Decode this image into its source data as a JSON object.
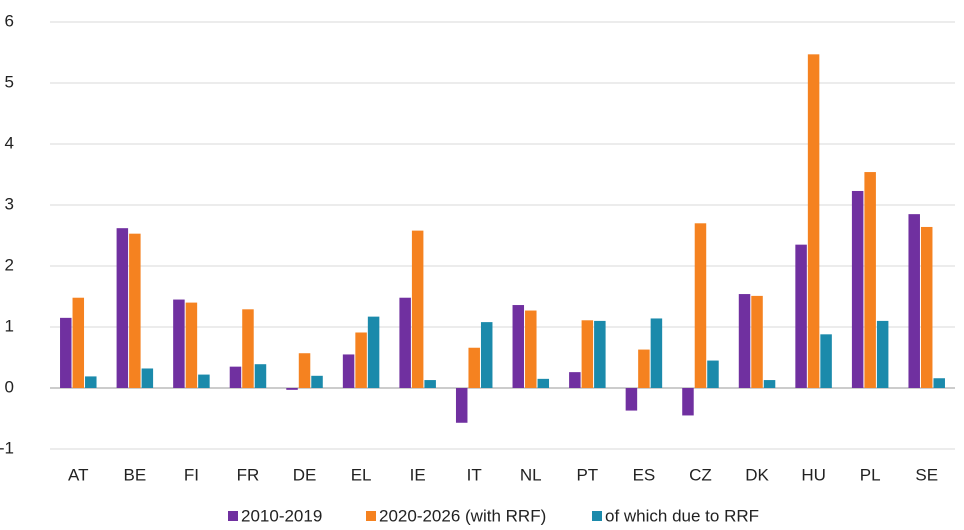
{
  "chart_data": {
    "type": "bar",
    "categories": [
      "AT",
      "BE",
      "FI",
      "FR",
      "DE",
      "EL",
      "IE",
      "IT",
      "NL",
      "PT",
      "ES",
      "CZ",
      "DK",
      "HU",
      "PL",
      "SE"
    ],
    "series": [
      {
        "name": "2010-2019",
        "color": "#7030a0",
        "values": [
          1.15,
          2.62,
          1.45,
          0.35,
          -0.03,
          0.55,
          1.48,
          -0.57,
          1.36,
          0.26,
          -0.37,
          -0.45,
          1.54,
          2.35,
          3.23,
          2.85
        ]
      },
      {
        "name": "2020-2026 (with RRF)",
        "color": "#f58220",
        "values": [
          1.48,
          2.53,
          1.4,
          1.29,
          0.57,
          0.91,
          2.58,
          0.66,
          1.27,
          1.11,
          0.63,
          2.7,
          1.51,
          5.47,
          3.54,
          2.64
        ]
      },
      {
        "name": "of which due to RRF",
        "color": "#1b8aab",
        "values": [
          0.19,
          0.32,
          0.22,
          0.39,
          0.2,
          1.17,
          0.13,
          1.08,
          0.15,
          1.1,
          1.14,
          0.45,
          0.13,
          0.88,
          1.1,
          0.16
        ]
      }
    ],
    "ylim": [
      -1,
      6
    ],
    "yticks": [
      -1,
      0,
      1,
      2,
      3,
      4,
      5,
      6
    ],
    "grid": true,
    "legend": "bottom"
  }
}
